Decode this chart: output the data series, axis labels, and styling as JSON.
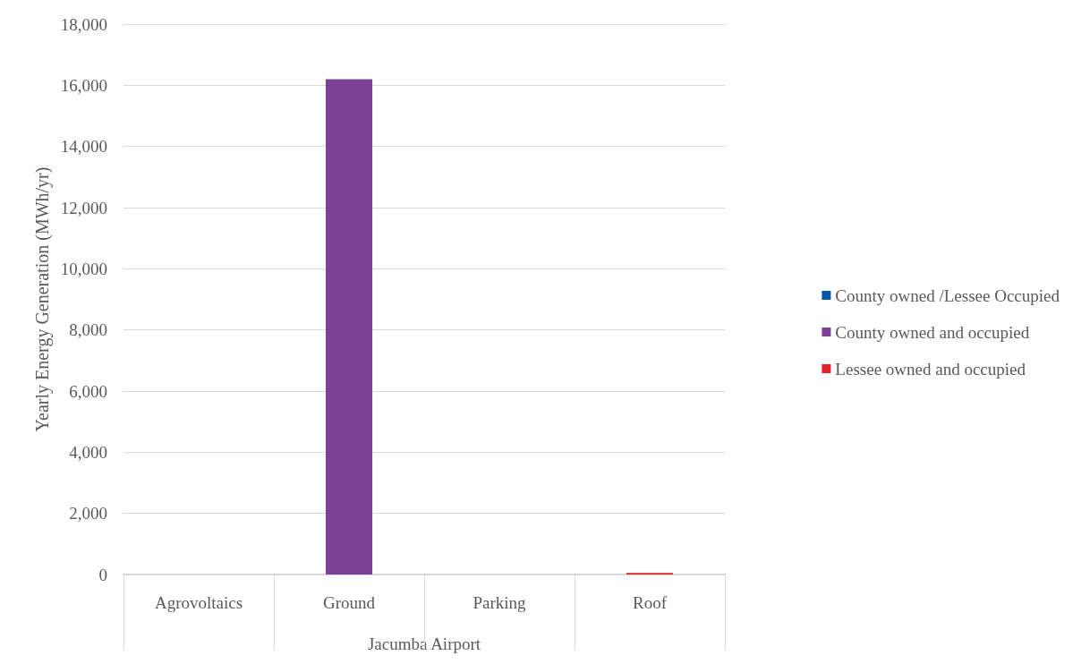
{
  "chart_data": {
    "type": "bar",
    "stacked": true,
    "categories": [
      "Agrovoltaics",
      "Ground",
      "Parking",
      "Roof"
    ],
    "xlabel": "Jacumba Airport",
    "ylabel": "Yearly Energy Generation (MWh/yr)",
    "ylim": [
      0,
      18000
    ],
    "yticks": [
      0,
      {
        "value": 2000,
        "label": "2,000"
      },
      {
        "value": 4000,
        "label": "4,000"
      },
      {
        "value": 6000,
        "label": "6,000"
      },
      {
        "value": 8000,
        "label": "8,000"
      },
      {
        "value": 10000,
        "label": "10,000"
      },
      {
        "value": 12000,
        "label": "12,000"
      },
      {
        "value": 14000,
        "label": "14,000"
      },
      {
        "value": 16000,
        "label": "16,000"
      },
      {
        "value": 18000,
        "label": "18,000"
      }
    ],
    "grid": "y",
    "legend": "right",
    "series": [
      {
        "name": "County owned /Lessee Occupied",
        "color": "#0055a5",
        "values": [
          0,
          0,
          0,
          0
        ]
      },
      {
        "name": "County owned and occupied",
        "color": "#7d4196",
        "values": [
          0,
          16200,
          0,
          0
        ]
      },
      {
        "name": "Lessee owned and occupied",
        "color": "#e3202a",
        "values": [
          0,
          0,
          0,
          50
        ]
      }
    ]
  }
}
